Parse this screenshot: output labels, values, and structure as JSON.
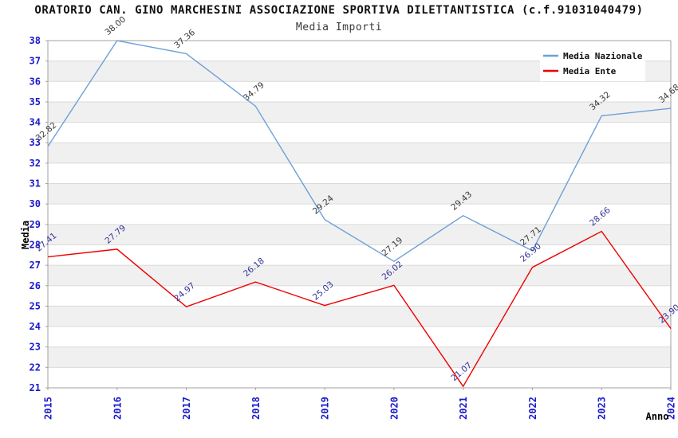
{
  "page": {
    "background": "#ffffff"
  },
  "chart_data": {
    "type": "line",
    "title": "ORATORIO CAN. GINO MARCHESINI ASSOCIAZIONE SPORTIVA DILETTANTISTICA (c.f.91031040479)",
    "subtitle": "Media Importi",
    "xlabel": "Anno",
    "ylabel": "Media",
    "x": [
      "2015",
      "2016",
      "2017",
      "2018",
      "2019",
      "2020",
      "2021",
      "2022",
      "2023",
      "2024"
    ],
    "ylim": [
      21,
      38
    ],
    "yticks": [
      21,
      22,
      23,
      24,
      25,
      26,
      27,
      28,
      29,
      30,
      31,
      32,
      33,
      34,
      35,
      36,
      37,
      38
    ],
    "grid": "horizontal gridlines with alternating shaded bands",
    "legend_position": "top-right",
    "series": [
      {
        "name": "Media Nazionale",
        "color": "#6EA0D7",
        "label_color": "#3A3A3A",
        "values": [
          32.82,
          38.0,
          37.36,
          34.79,
          29.24,
          27.19,
          29.43,
          27.71,
          34.32,
          34.68
        ]
      },
      {
        "name": "Media Ente",
        "color": "#EE0000",
        "label_color": "#333399",
        "values": [
          27.41,
          27.79,
          24.97,
          26.18,
          25.03,
          26.02,
          21.07,
          26.9,
          28.66,
          23.9
        ]
      }
    ],
    "colors": {
      "tick_label": "#1A1ACC",
      "band": "#F0F0F0",
      "gridline": "#DADADA",
      "frame": "#A0A0A0",
      "axis_title": "#000000",
      "legend_bg": "#FFFFFF",
      "legend_text": "#111111"
    }
  }
}
